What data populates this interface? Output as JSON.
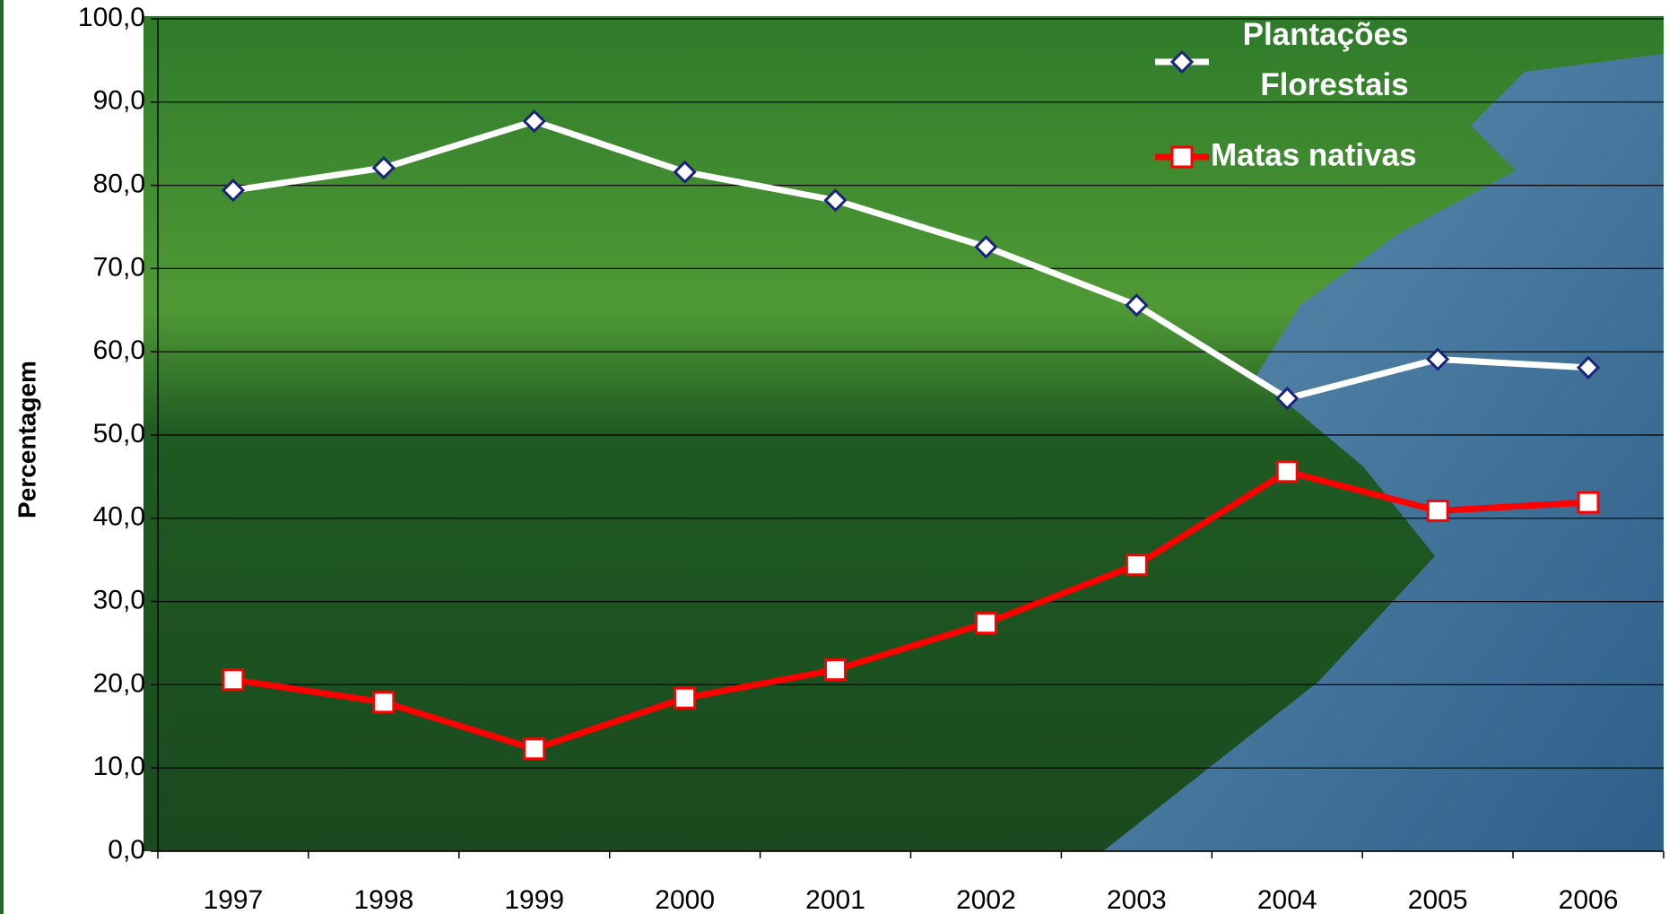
{
  "chart_data": {
    "type": "line",
    "y_label": "Percentagem",
    "categories": [
      "1997",
      "1998",
      "1999",
      "2000",
      "2001",
      "2002",
      "2003",
      "2004",
      "2005",
      "2006"
    ],
    "series": [
      {
        "name": "Plantações Florestais",
        "color": "#ffffff",
        "marker": "diamond",
        "marker_edge": "#1a237e",
        "values": [
          79.4,
          82.1,
          87.7,
          81.6,
          78.2,
          72.6,
          65.6,
          54.4,
          59.1,
          58.1
        ]
      },
      {
        "name": "Matas nativas",
        "color": "#ff0000",
        "marker": "square",
        "marker_edge": "#ff0000",
        "values": [
          20.6,
          17.9,
          12.3,
          18.4,
          21.8,
          27.4,
          34.4,
          45.6,
          40.9,
          41.9
        ]
      }
    ],
    "ylim": [
      0,
      100
    ],
    "yticks": [
      {
        "value": 0,
        "label": "0,0"
      },
      {
        "value": 10,
        "label": "10,0"
      },
      {
        "value": 20,
        "label": "20,0"
      },
      {
        "value": 30,
        "label": "30,0"
      },
      {
        "value": 40,
        "label": "40,0"
      },
      {
        "value": 50,
        "label": "50,0"
      },
      {
        "value": 60,
        "label": "60,0"
      },
      {
        "value": 70,
        "label": "70,0"
      },
      {
        "value": 80,
        "label": "80,0"
      },
      {
        "value": 90,
        "label": "90,0"
      },
      {
        "value": 100,
        "label": "100,0"
      }
    ],
    "grid": true,
    "legend": "upper right"
  }
}
